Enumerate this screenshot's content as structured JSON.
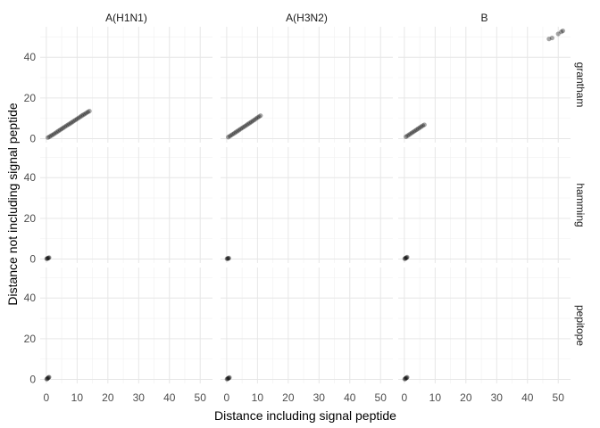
{
  "chart_data": {
    "type": "scatter",
    "xlabel": "Distance including signal peptide",
    "ylabel": "Distance not including signal peptide",
    "xlim": [
      -2,
      54
    ],
    "ylim": [
      -2,
      55
    ],
    "x_ticks": [
      0,
      10,
      20,
      30,
      40,
      50
    ],
    "y_ticks": [
      0,
      20,
      40
    ],
    "grid": true,
    "legend": "none",
    "point_color": "#000000",
    "point_alpha": 0.35,
    "columns": [
      "A(H1N1)",
      "A(H3N2)",
      "B"
    ],
    "rows": [
      "grantham",
      "hamming",
      "pepitope"
    ],
    "panels": [
      {
        "col": "A(H1N1)",
        "row": "grantham",
        "points": [
          [
            0.5,
            0.5
          ],
          [
            1,
            0.9
          ],
          [
            1.5,
            1.4
          ],
          [
            2,
            1.8
          ],
          [
            2.5,
            2.3
          ],
          [
            3,
            2.8
          ],
          [
            3.5,
            3.3
          ],
          [
            4,
            3.8
          ],
          [
            4.5,
            4.3
          ],
          [
            5,
            4.8
          ],
          [
            5.5,
            5.3
          ],
          [
            6,
            5.8
          ],
          [
            6.5,
            6.3
          ],
          [
            7,
            6.8
          ],
          [
            7.5,
            7.2
          ],
          [
            8,
            7.7
          ],
          [
            8.5,
            8.2
          ],
          [
            9,
            8.7
          ],
          [
            9.5,
            9.2
          ],
          [
            10,
            9.7
          ],
          [
            10.5,
            10.2
          ],
          [
            11,
            10.7
          ],
          [
            11.5,
            11.2
          ],
          [
            12,
            11.7
          ],
          [
            12.5,
            12.1
          ],
          [
            13,
            12.6
          ],
          [
            13.5,
            13.1
          ],
          [
            14,
            13.5
          ]
        ]
      },
      {
        "col": "A(H3N2)",
        "row": "grantham",
        "points": [
          [
            0.5,
            0.7
          ],
          [
            1,
            1.2
          ],
          [
            1.5,
            1.7
          ],
          [
            2,
            2.2
          ],
          [
            2.5,
            2.7
          ],
          [
            3,
            3.2
          ],
          [
            3.5,
            3.7
          ],
          [
            4,
            4.2
          ],
          [
            4.5,
            4.7
          ],
          [
            5,
            5.2
          ],
          [
            5.5,
            5.7
          ],
          [
            6,
            6.2
          ],
          [
            6.5,
            6.7
          ],
          [
            7,
            7.2
          ],
          [
            7.5,
            7.7
          ],
          [
            8,
            8.2
          ],
          [
            8.5,
            8.7
          ],
          [
            9,
            9.2
          ],
          [
            9.5,
            9.8
          ],
          [
            10,
            10.3
          ],
          [
            10.5,
            10.8
          ],
          [
            11,
            11.3
          ]
        ]
      },
      {
        "col": "B",
        "row": "grantham",
        "points": [
          [
            0.5,
            0.9
          ],
          [
            1,
            1.4
          ],
          [
            1.5,
            1.9
          ],
          [
            2,
            2.4
          ],
          [
            2.5,
            2.9
          ],
          [
            3,
            3.4
          ],
          [
            3.5,
            3.9
          ],
          [
            4,
            4.4
          ],
          [
            4.5,
            4.9
          ],
          [
            5,
            5.4
          ],
          [
            5.5,
            5.9
          ],
          [
            6,
            6.4
          ],
          [
            6.5,
            6.8
          ],
          [
            47,
            49
          ],
          [
            48,
            49.5
          ],
          [
            50,
            51.5
          ],
          [
            51,
            52.5
          ],
          [
            51.5,
            53
          ]
        ]
      },
      {
        "col": "A(H1N1)",
        "row": "hamming",
        "points": [
          [
            0.1,
            0.1
          ],
          [
            0.3,
            0.2
          ],
          [
            0.5,
            0.4
          ],
          [
            0.7,
            0.5
          ],
          [
            0.9,
            0.7
          ]
        ]
      },
      {
        "col": "A(H3N2)",
        "row": "hamming",
        "points": [
          [
            0.1,
            0.1
          ],
          [
            0.3,
            0.2
          ],
          [
            0.5,
            0.3
          ],
          [
            0.7,
            0.4
          ]
        ]
      },
      {
        "col": "B",
        "row": "hamming",
        "points": [
          [
            0.1,
            0.1
          ],
          [
            0.3,
            0.3
          ],
          [
            0.5,
            0.5
          ],
          [
            0.7,
            0.7
          ],
          [
            0.9,
            0.9
          ]
        ]
      },
      {
        "col": "A(H1N1)",
        "row": "pepitope",
        "points": [
          [
            0.1,
            0.1
          ],
          [
            0.3,
            0.3
          ],
          [
            0.5,
            0.6
          ],
          [
            0.7,
            0.9
          ],
          [
            0.9,
            1.1
          ]
        ]
      },
      {
        "col": "A(H3N2)",
        "row": "pepitope",
        "points": [
          [
            0.1,
            0.1
          ],
          [
            0.3,
            0.3
          ],
          [
            0.5,
            0.5
          ],
          [
            0.7,
            0.7
          ],
          [
            0.9,
            0.9
          ]
        ]
      },
      {
        "col": "B",
        "row": "pepitope",
        "points": [
          [
            0.1,
            0.1
          ],
          [
            0.3,
            0.3
          ],
          [
            0.5,
            0.6
          ],
          [
            0.7,
            0.8
          ],
          [
            0.9,
            1.0
          ]
        ]
      }
    ]
  }
}
